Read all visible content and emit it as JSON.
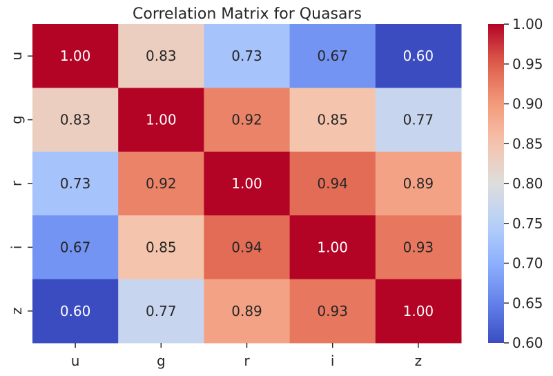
{
  "chart_data": {
    "type": "heatmap",
    "title": "Correlation Matrix for Quasars",
    "x_categories": [
      "u",
      "g",
      "r",
      "i",
      "z"
    ],
    "y_categories": [
      "u",
      "g",
      "r",
      "i",
      "z"
    ],
    "values": [
      [
        1.0,
        0.83,
        0.73,
        0.67,
        0.6
      ],
      [
        0.83,
        1.0,
        0.92,
        0.85,
        0.77
      ],
      [
        0.73,
        0.92,
        1.0,
        0.94,
        0.89
      ],
      [
        0.67,
        0.85,
        0.94,
        1.0,
        0.93
      ],
      [
        0.6,
        0.77,
        0.89,
        0.93,
        1.0
      ]
    ],
    "value_format": "0.00",
    "colormap": "coolwarm",
    "vmin": 0.6,
    "vmax": 1.0,
    "colorbar": {
      "position": "right",
      "ticks": [
        "0.60",
        "0.65",
        "0.70",
        "0.75",
        "0.80",
        "0.85",
        "0.90",
        "0.95",
        "1.00"
      ]
    },
    "grid": false
  }
}
